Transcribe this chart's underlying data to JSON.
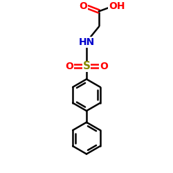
{
  "background": "#ffffff",
  "bond_color": "#000000",
  "bond_width": 1.8,
  "colors": {
    "O": "#ff0000",
    "N": "#0000cc",
    "S": "#888800"
  },
  "font_size": 10,
  "fig_size": [
    2.5,
    2.5
  ],
  "dpi": 100
}
